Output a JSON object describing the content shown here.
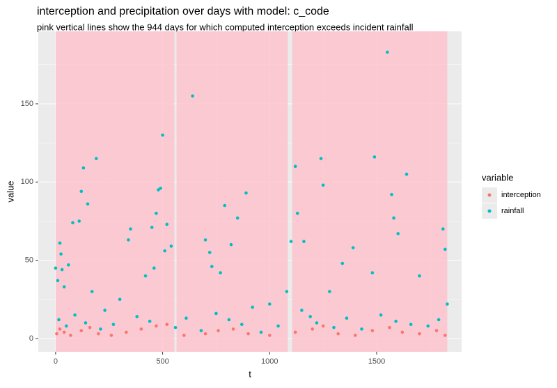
{
  "chart_data": {
    "type": "scatter",
    "title": "interception and precipitation over days with model: c_code",
    "subtitle": "pink vertical lines show the 944 days for which computed interception exceeds incident rainfall",
    "x_label": "t",
    "y_label": "value",
    "legend_title": "variable",
    "highlight_spans": [
      [
        0,
        555
      ],
      [
        565,
        1085
      ],
      [
        1105,
        1830
      ]
    ],
    "highlight_color": "#ffc0cb",
    "xlim": [
      -81,
      1897
    ],
    "ylim": [
      -8.5,
      196.3
    ],
    "xticks": [
      0,
      500,
      1000,
      1500
    ],
    "yticks": [
      0,
      50,
      100,
      150
    ],
    "x_minor_ticks": [
      250,
      750,
      1250,
      1750
    ],
    "y_minor_ticks": [
      25,
      75,
      125,
      175
    ],
    "grid": true,
    "series": [
      {
        "name": "interception",
        "color": "#F8766D",
        "x": [
          5,
          20,
          40,
          70,
          120,
          160,
          200,
          260,
          330,
          400,
          470,
          520,
          600,
          700,
          760,
          830,
          900,
          1000,
          1120,
          1200,
          1250,
          1320,
          1400,
          1480,
          1560,
          1620,
          1700,
          1780,
          1820
        ],
        "values": [
          3,
          6,
          4,
          2,
          5,
          7,
          3,
          2,
          4,
          6,
          8,
          9,
          2,
          3,
          5,
          6,
          3,
          2,
          4,
          6,
          8,
          3,
          2,
          5,
          7,
          4,
          3,
          5,
          2
        ]
      },
      {
        "name": "rainfall",
        "color": "#00BFC4",
        "x": [
          0,
          10,
          20,
          25,
          30,
          40,
          60,
          80,
          110,
          120,
          130,
          150,
          170,
          190,
          230,
          300,
          340,
          350,
          420,
          450,
          460,
          470,
          480,
          490,
          500,
          510,
          520,
          540,
          640,
          700,
          720,
          730,
          770,
          790,
          820,
          850,
          890,
          920,
          1000,
          1080,
          1100,
          1120,
          1130,
          1160,
          1240,
          1250,
          1280,
          1340,
          1390,
          1480,
          1490,
          1550,
          1570,
          1580,
          1600,
          1640,
          1700,
          1810,
          1820,
          1830,
          15,
          50,
          90,
          140,
          210,
          270,
          380,
          440,
          560,
          610,
          680,
          750,
          810,
          870,
          960,
          1040,
          1150,
          1190,
          1220,
          1300,
          1360,
          1430,
          1520,
          1590,
          1660,
          1740,
          1790
        ],
        "values": [
          45,
          37,
          61,
          54,
          44,
          33,
          47,
          74,
          75,
          94,
          109,
          86,
          30,
          115,
          18,
          25,
          63,
          70,
          40,
          71,
          45,
          80,
          95,
          96,
          130,
          56,
          73,
          59,
          155,
          63,
          55,
          46,
          42,
          85,
          60,
          77,
          93,
          20,
          22,
          30,
          62,
          110,
          80,
          62,
          115,
          98,
          30,
          48,
          58,
          42,
          116,
          183,
          92,
          77,
          67,
          105,
          40,
          70,
          57,
          22,
          12,
          8,
          15,
          10,
          6,
          9,
          14,
          11,
          7,
          13,
          5,
          16,
          12,
          9,
          4,
          8,
          18,
          14,
          10,
          7,
          13,
          6,
          15,
          11,
          9,
          8,
          12
        ]
      }
    ]
  }
}
